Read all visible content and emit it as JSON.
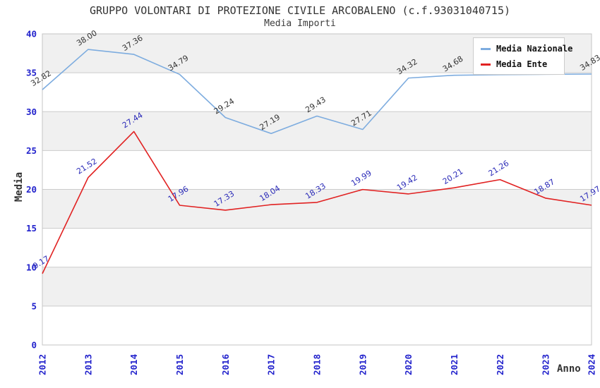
{
  "header": {
    "title": "GRUPPO VOLONTARI DI PROTEZIONE CIVILE ARCOBALENO (c.f.93031040715)",
    "subtitle": "Media Importi"
  },
  "legend": {
    "items": [
      {
        "label": "Media Nazionale",
        "color": "#7dacdf"
      },
      {
        "label": "Media Ente",
        "color": "#e12222"
      }
    ]
  },
  "axes": {
    "y_label": "Media",
    "x_label": "Anno",
    "y_ticks": [
      0,
      5,
      10,
      15,
      20,
      25,
      30,
      35,
      40
    ],
    "x_ticks": [
      "2012",
      "2013",
      "2014",
      "2015",
      "2016",
      "2017",
      "2018",
      "2019",
      "2020",
      "2021",
      "2022",
      "2023",
      "2024"
    ],
    "tick_color": "#2222cc"
  },
  "theme": {
    "band": "#f0f0f0",
    "grid": "#cccccc",
    "border": "#c4c4c4",
    "background": "#ffffff"
  },
  "chart_data": {
    "type": "line",
    "title": "GRUPPO VOLONTARI DI PROTEZIONE CIVILE ARCOBALENO (c.f.93031040715)",
    "subtitle": "Media Importi",
    "xlabel": "Anno",
    "ylabel": "Media",
    "x": [
      2012,
      2013,
      2014,
      2015,
      2016,
      2017,
      2018,
      2019,
      2020,
      2021,
      2022,
      2023,
      2024
    ],
    "ylim": [
      0,
      40
    ],
    "grid": "horizontal",
    "background_bands": true,
    "legend_position": "top-right",
    "series": [
      {
        "name": "Media Nazionale",
        "color": "#7dacdf",
        "label_color": "#333333",
        "values": [
          32.82,
          38.0,
          37.36,
          34.79,
          29.24,
          27.19,
          29.43,
          27.71,
          34.32,
          34.68,
          34.75,
          34.8,
          34.83
        ],
        "point_labels": [
          "32.82",
          "38.00",
          "37.36",
          "34.79",
          "29.24",
          "27.19",
          "29.43",
          "27.71",
          "34.32",
          "34.68",
          null,
          null,
          "34.83"
        ]
      },
      {
        "name": "Media Ente",
        "color": "#e12222",
        "label_color": "#2a2ab8",
        "values": [
          9.17,
          21.52,
          27.44,
          17.96,
          17.33,
          18.04,
          18.33,
          19.99,
          19.42,
          20.21,
          21.26,
          18.87,
          17.97
        ],
        "point_labels": [
          "9.17",
          "21.52",
          "27.44",
          "17.96",
          "17.33",
          "18.04",
          "18.33",
          "19.99",
          "19.42",
          "20.21",
          "21.26",
          "18.87",
          "17.97"
        ]
      }
    ]
  }
}
